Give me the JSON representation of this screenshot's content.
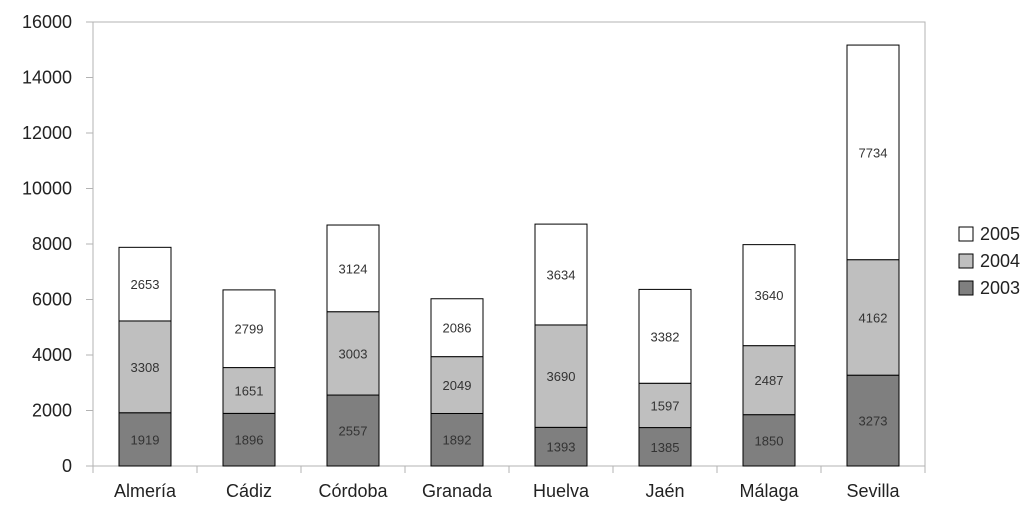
{
  "chart_data": {
    "type": "bar",
    "stacked": true,
    "categories": [
      "Almería",
      "Cádiz",
      "Córdoba",
      "Granada",
      "Huelva",
      "Jaén",
      "Málaga",
      "Sevilla"
    ],
    "series": [
      {
        "name": "2003",
        "color": "#7f7f7f",
        "values": [
          1919,
          1896,
          2557,
          1892,
          1393,
          1385,
          1850,
          3273
        ]
      },
      {
        "name": "2004",
        "color": "#bfbfbf",
        "values": [
          3308,
          1651,
          3003,
          2049,
          3690,
          1597,
          2487,
          4162
        ]
      },
      {
        "name": "2005",
        "color": "#ffffff",
        "values": [
          2653,
          2799,
          3124,
          2086,
          3634,
          3382,
          3640,
          7734
        ]
      }
    ],
    "ylim": [
      0,
      16000
    ],
    "yticks": [
      "0",
      "2000",
      "4000",
      "6000",
      "8000",
      "10000",
      "12000",
      "14000",
      "16000"
    ],
    "grid": false,
    "legend_position": "right",
    "legend_order": [
      "2005",
      "2004",
      "2003"
    ],
    "title": "",
    "xlabel": "",
    "ylabel": ""
  }
}
